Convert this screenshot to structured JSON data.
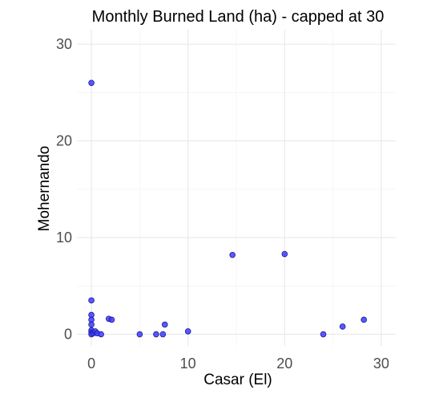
{
  "chart_data": {
    "type": "scatter",
    "title": "Monthly Burned Land (ha) - capped at 30",
    "xlabel": "Casar (El)",
    "ylabel": "Mohernando",
    "xlim": [
      -1.5,
      31.5
    ],
    "ylim": [
      -1.2,
      31.5
    ],
    "xticks": [
      0,
      10,
      20,
      30
    ],
    "yticks": [
      0,
      10,
      20,
      30
    ],
    "xtick_labels": [
      "0",
      "10",
      "20",
      "30"
    ],
    "ytick_labels": [
      "0",
      "10",
      "20",
      "30"
    ],
    "grid": true,
    "point_color": "#3b3bff",
    "points": [
      {
        "x": 0,
        "y": 26
      },
      {
        "x": 0,
        "y": 3.5
      },
      {
        "x": 0,
        "y": 2
      },
      {
        "x": 0,
        "y": 1.5
      },
      {
        "x": 0,
        "y": 1
      },
      {
        "x": 0,
        "y": 0.4
      },
      {
        "x": 0,
        "y": 0.2
      },
      {
        "x": 0,
        "y": 0
      },
      {
        "x": 0.2,
        "y": 0.1
      },
      {
        "x": 0.4,
        "y": 0.3
      },
      {
        "x": 0.6,
        "y": 0.1
      },
      {
        "x": 1,
        "y": 0
      },
      {
        "x": 1.8,
        "y": 1.6
      },
      {
        "x": 2.1,
        "y": 1.5
      },
      {
        "x": 5,
        "y": 0
      },
      {
        "x": 6.7,
        "y": 0
      },
      {
        "x": 7.4,
        "y": 0
      },
      {
        "x": 7.6,
        "y": 1
      },
      {
        "x": 10,
        "y": 0.3
      },
      {
        "x": 14.6,
        "y": 8.2
      },
      {
        "x": 20,
        "y": 8.3
      },
      {
        "x": 24,
        "y": 0
      },
      {
        "x": 26,
        "y": 0.8
      },
      {
        "x": 28.2,
        "y": 1.5
      }
    ]
  }
}
